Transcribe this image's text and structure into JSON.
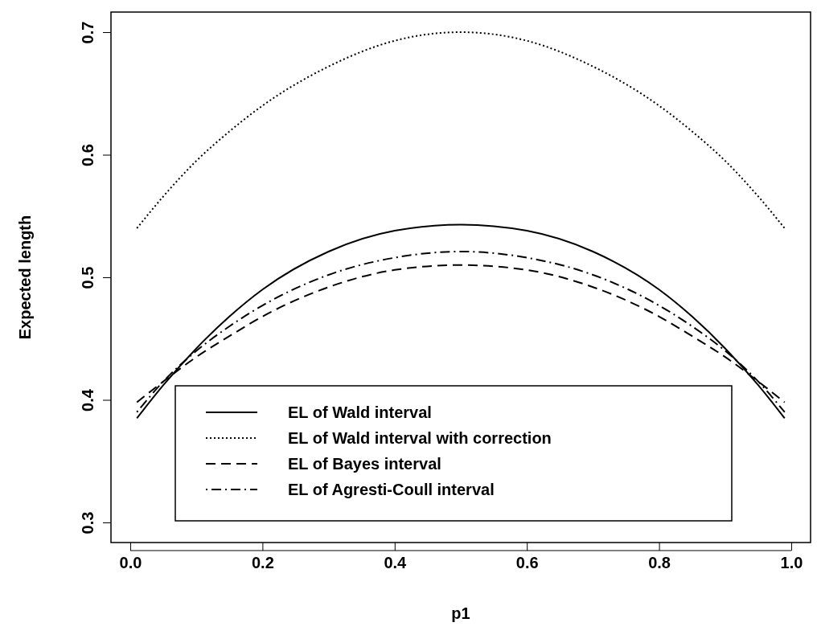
{
  "chart_data": {
    "type": "line",
    "xlabel": "p1",
    "ylabel": "Expected length",
    "x": [
      0.01,
      0.05,
      0.1,
      0.15,
      0.2,
      0.3,
      0.4,
      0.5,
      0.6,
      0.7,
      0.8,
      0.85,
      0.9,
      0.95,
      0.99
    ],
    "series": [
      {
        "name": "EL of Wald interval",
        "color": "#000000",
        "line_style": "solid",
        "values": [
          0.385,
          0.412,
          0.442,
          0.468,
          0.49,
          0.521,
          0.538,
          0.543,
          0.538,
          0.521,
          0.49,
          0.468,
          0.442,
          0.412,
          0.385
        ]
      },
      {
        "name": "EL of Wald interval with correction",
        "color": "#000000",
        "line_style": "dotted",
        "values": [
          0.54,
          0.566,
          0.595,
          0.619,
          0.64,
          0.672,
          0.693,
          0.7,
          0.693,
          0.672,
          0.64,
          0.619,
          0.595,
          0.566,
          0.54
        ]
      },
      {
        "name": "EL of Bayes interval",
        "color": "#000000",
        "line_style": "dashed",
        "values": [
          0.398,
          0.415,
          0.435,
          0.452,
          0.468,
          0.492,
          0.506,
          0.51,
          0.506,
          0.492,
          0.468,
          0.452,
          0.435,
          0.415,
          0.398
        ]
      },
      {
        "name": "EL of Agresti-Coull interval",
        "color": "#000000",
        "line_style": "dashdot",
        "values": [
          0.39,
          0.415,
          0.44,
          0.46,
          0.477,
          0.502,
          0.516,
          0.521,
          0.516,
          0.502,
          0.477,
          0.46,
          0.44,
          0.415,
          0.39
        ]
      }
    ],
    "xlim": [
      -0.0292,
      1.0292
    ],
    "ylim": [
      0.2836,
      0.7164
    ],
    "xticks": [
      {
        "value": 0,
        "label": "0.0"
      },
      0.2,
      0.4,
      0.6,
      0.8,
      {
        "value": 1,
        "label": "1.0"
      }
    ],
    "yticks": [
      0.3,
      0.4,
      0.5,
      0.6,
      0.7
    ],
    "legend": "bottom",
    "grid": false,
    "marker": "none"
  }
}
